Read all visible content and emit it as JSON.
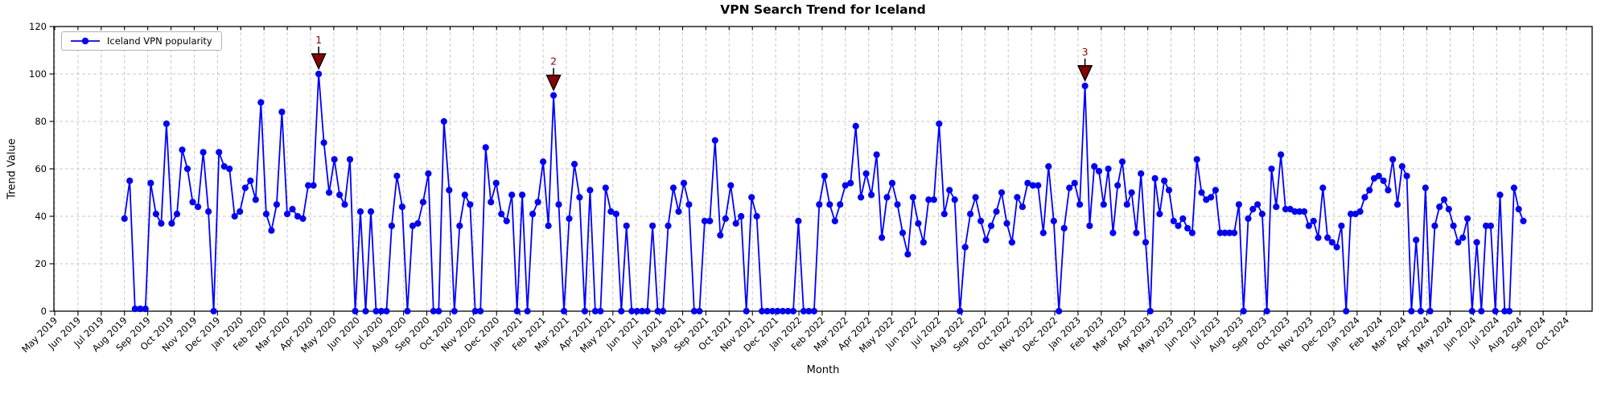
{
  "title": "VPN Search Trend for Iceland",
  "legend": {
    "label": "Iceland VPN popularity"
  },
  "axes": {
    "xlabel": "Month",
    "ylabel": "Trend Value"
  },
  "colors": {
    "line": "#0000ff",
    "marker": "#0000ff",
    "annotation": "#8b0000",
    "annotation_edge": "#000000",
    "grid": "#c9c9c9",
    "axis": "#000000",
    "background": "#ffffff"
  },
  "chart_data": {
    "type": "line",
    "title": "VPN Search Trend for Iceland",
    "xlabel": "Month",
    "ylabel": "Trend Value",
    "ylim": [
      0,
      120
    ],
    "grid": true,
    "legend_position": "upper left",
    "y_ticks": [
      0,
      20,
      40,
      60,
      80,
      100,
      120
    ],
    "x_tick_labels": [
      "May 2019",
      "Jun 2019",
      "Jul 2019",
      "Aug 2019",
      "Sep 2019",
      "Oct 2019",
      "Nov 2019",
      "Dec 2019",
      "Jan 2020",
      "Feb 2020",
      "Mar 2020",
      "Apr 2020",
      "May 2020",
      "Jun 2020",
      "Jul 2020",
      "Aug 2020",
      "Sep 2020",
      "Oct 2020",
      "Nov 2020",
      "Dec 2020",
      "Jan 2021",
      "Feb 2021",
      "Mar 2021",
      "Apr 2021",
      "May 2021",
      "Jun 2021",
      "Jul 2021",
      "Aug 2021",
      "Sep 2021",
      "Oct 2021",
      "Nov 2021",
      "Dec 2021",
      "Jan 2022",
      "Feb 2022",
      "Mar 2022",
      "Apr 2022",
      "May 2022",
      "Jun 2022",
      "Jul 2022",
      "Aug 2022",
      "Sep 2022",
      "Oct 2022",
      "Nov 2022",
      "Dec 2022",
      "Jan 2023",
      "Feb 2023",
      "Mar 2023",
      "Apr 2023",
      "May 2023",
      "Jun 2023",
      "Jul 2023",
      "Aug 2023",
      "Sep 2023",
      "Oct 2023",
      "Nov 2023",
      "Dec 2023",
      "Jan 2024",
      "Feb 2024",
      "Mar 2024",
      "Apr 2024",
      "May 2024",
      "Jun 2024",
      "Jul 2024",
      "Aug 2024",
      "Sep 2024",
      "Oct 2024"
    ],
    "first_point_at": "Aug 2019",
    "last_point_at": "Aug 2024",
    "series": [
      {
        "name": "Iceland VPN popularity",
        "color": "#0000ff",
        "values": [
          39,
          55,
          1,
          1,
          1,
          54,
          41,
          37,
          79,
          37,
          41,
          68,
          60,
          46,
          44,
          67,
          42,
          0,
          67,
          61,
          60,
          40,
          42,
          52,
          55,
          47,
          88,
          41,
          34,
          45,
          84,
          41,
          43,
          40,
          39,
          53,
          53,
          100,
          71,
          50,
          64,
          49,
          45,
          64,
          0,
          42,
          0,
          42,
          0,
          0,
          0,
          36,
          57,
          44,
          0,
          36,
          37,
          46,
          58,
          0,
          0,
          80,
          51,
          0,
          36,
          49,
          45,
          0,
          0,
          69,
          46,
          54,
          41,
          38,
          49,
          0,
          49,
          0,
          41,
          46,
          63,
          36,
          91,
          45,
          0,
          39,
          62,
          48,
          0,
          51,
          0,
          0,
          52,
          42,
          41,
          0,
          36,
          0,
          0,
          0,
          0,
          36,
          0,
          0,
          36,
          52,
          42,
          54,
          45,
          0,
          0,
          38,
          38,
          72,
          32,
          39,
          53,
          37,
          40,
          0,
          48,
          40,
          0,
          0,
          0,
          0,
          0,
          0,
          0,
          38,
          0,
          0,
          0,
          45,
          57,
          45,
          38,
          45,
          53,
          54,
          78,
          48,
          58,
          49,
          66,
          31,
          48,
          54,
          45,
          33,
          24,
          48,
          37,
          29,
          47,
          47,
          79,
          41,
          51,
          47,
          0,
          27,
          41,
          48,
          38,
          30,
          36,
          42,
          50,
          37,
          29,
          48,
          44,
          54,
          53,
          53,
          33,
          61,
          38,
          0,
          35,
          52,
          54,
          45,
          95,
          36,
          61,
          59,
          45,
          60,
          33,
          53,
          63,
          45,
          50,
          33,
          58,
          29,
          0,
          56,
          41,
          55,
          51,
          38,
          36,
          39,
          35,
          33,
          64,
          50,
          47,
          48,
          51,
          33,
          33,
          33,
          33,
          45,
          0,
          39,
          43,
          45,
          41,
          0,
          60,
          44,
          66,
          43,
          43,
          42,
          42,
          42,
          36,
          38,
          31,
          52,
          31,
          29,
          27,
          36,
          0,
          41,
          41,
          42,
          48,
          51,
          56,
          57,
          55,
          51,
          64,
          45,
          61,
          57,
          0,
          30,
          0,
          52,
          0,
          36,
          44,
          47,
          43,
          36,
          29,
          31,
          39,
          0,
          29,
          0,
          36,
          36,
          0,
          49,
          0,
          0,
          52,
          43,
          38
        ]
      }
    ],
    "annotations": [
      {
        "label": "1",
        "point_index": 37,
        "value": 100
      },
      {
        "label": "2",
        "point_index": 82,
        "value": 91
      },
      {
        "label": "3",
        "point_index": 184,
        "value": 95
      }
    ]
  }
}
